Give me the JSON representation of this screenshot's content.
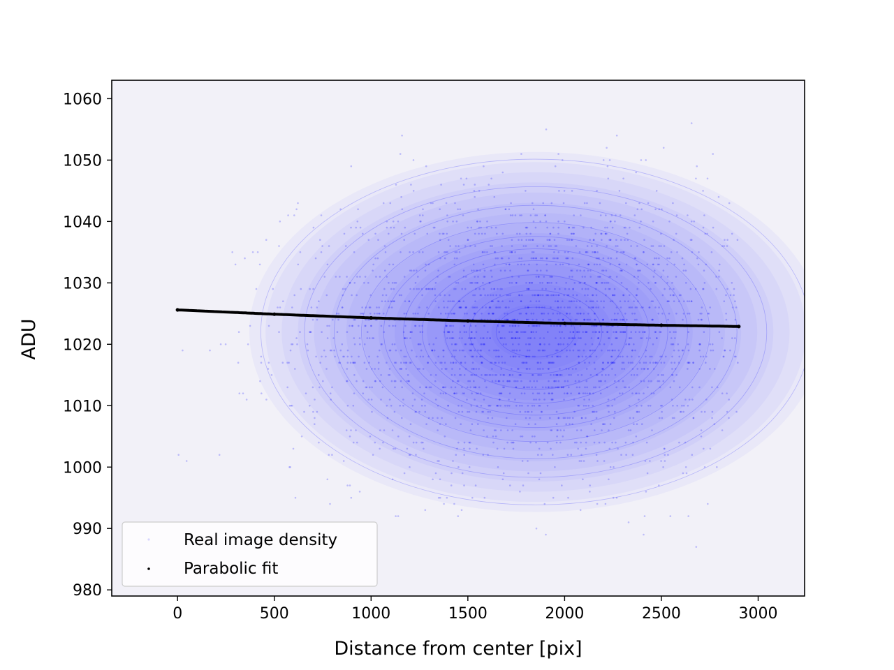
{
  "chart_data": {
    "type": "scatter",
    "xlabel": "Distance from center [pix]",
    "ylabel": "ADU",
    "xlim": [
      -340,
      3240
    ],
    "ylim": [
      979,
      1063
    ],
    "xticks": [
      0,
      500,
      1000,
      1500,
      2000,
      2500,
      3000
    ],
    "yticks": [
      980,
      990,
      1000,
      1010,
      1020,
      1030,
      1040,
      1050,
      1060
    ],
    "grid": false,
    "legend_position": "lower-left",
    "background_color": "#f2f1f8",
    "series": [
      {
        "name": "Real image density",
        "kind": "scatter-density",
        "color": "#0000ff",
        "x_range": [
          0,
          2900
        ],
        "y_range": [
          985,
          1057
        ],
        "peak": {
          "x": 1850,
          "y": 1022
        },
        "spread": {
          "x": 580,
          "y": 11.5
        },
        "contour_levels": [
          0.05,
          0.12,
          0.2,
          0.3,
          0.4,
          0.5,
          0.6,
          0.72,
          0.84,
          0.94
        ]
      },
      {
        "name": "Parabolic fit",
        "kind": "line-points",
        "color": "#000000",
        "x": [
          0,
          500,
          1000,
          1500,
          2000,
          2500,
          2900
        ],
        "y": [
          1025.6,
          1024.9,
          1024.3,
          1023.8,
          1023.4,
          1023.1,
          1022.9
        ]
      }
    ]
  }
}
